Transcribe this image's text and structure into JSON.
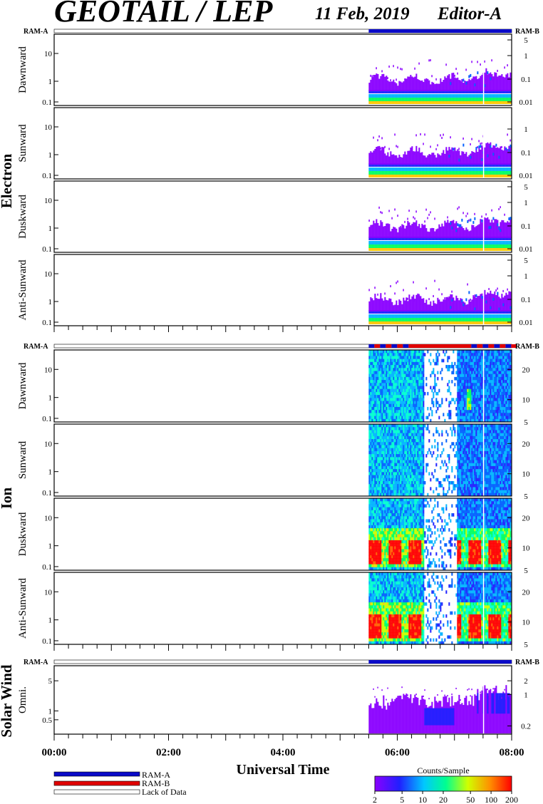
{
  "title": "GEOTAIL / LEP",
  "date": "11 Feb, 2019",
  "editor": "Editor-A",
  "colors": {
    "ram_a": "#0a0ac8",
    "ram_b": "#e00000",
    "lack": "#ffffff"
  },
  "chart_data": {
    "type": "heatmap",
    "xlabel": "Universal Time",
    "x_ticks": [
      "00:00",
      "02:00",
      "04:00",
      "06:00",
      "08:00"
    ],
    "x_range_hours": [
      0,
      8
    ],
    "data_start_hours": 5.5,
    "mode_bar_label_left": "RAM-A",
    "mode_bar_label_right": "RAM-B",
    "groups": [
      {
        "name": "Electron",
        "panels": [
          {
            "label": "Dawnward",
            "left_ticks": [
              "10",
              "1",
              "0.1"
            ],
            "right_ticks": [
              "5",
              "1",
              "0.1",
              "0.01"
            ]
          },
          {
            "label": "Sunward",
            "left_ticks": [
              "10",
              "1",
              "0.1"
            ],
            "right_ticks": [
              "1",
              "0.1",
              "0.01"
            ]
          },
          {
            "label": "Duskward",
            "left_ticks": [
              "10",
              "1",
              "0.1"
            ],
            "right_ticks": [
              "5",
              "1",
              "0.1",
              "0.01"
            ]
          },
          {
            "label": "Anti-Sunward",
            "left_ticks": [
              "10",
              "1",
              "0.1"
            ],
            "right_ticks": [
              "5",
              "1",
              "0.1",
              "0.01"
            ]
          }
        ]
      },
      {
        "name": "Ion",
        "panels": [
          {
            "label": "Dawnward",
            "left_ticks": [
              "10",
              "1",
              "0.1"
            ],
            "right_ticks": [
              "20",
              "10",
              "5"
            ]
          },
          {
            "label": "Sunward",
            "left_ticks": [
              "10",
              "1",
              "0.1"
            ],
            "right_ticks": [
              "20",
              "10",
              "5"
            ]
          },
          {
            "label": "Duskward",
            "left_ticks": [
              "10",
              "1",
              "0.1"
            ],
            "right_ticks": [
              "20",
              "10",
              "5"
            ]
          },
          {
            "label": "Anti-Sunward",
            "left_ticks": [
              "10",
              "1",
              "0.1"
            ],
            "right_ticks": [
              "20",
              "10",
              "5"
            ]
          }
        ]
      },
      {
        "name": "Solar Wind",
        "panels": [
          {
            "label": "Omni.",
            "left_ticks": [
              "5",
              "1",
              "0.5"
            ],
            "right_ticks": [
              "2",
              "1",
              "0.2"
            ]
          }
        ]
      }
    ],
    "legend": [
      "RAM-A",
      "RAM-B",
      "Lack of Data"
    ],
    "colorbar": {
      "title": "Counts/Sample",
      "ticks": [
        "2",
        "5",
        "10",
        "20",
        "50",
        "100",
        "200"
      ],
      "range": [
        2,
        200
      ],
      "scale": "log"
    }
  }
}
